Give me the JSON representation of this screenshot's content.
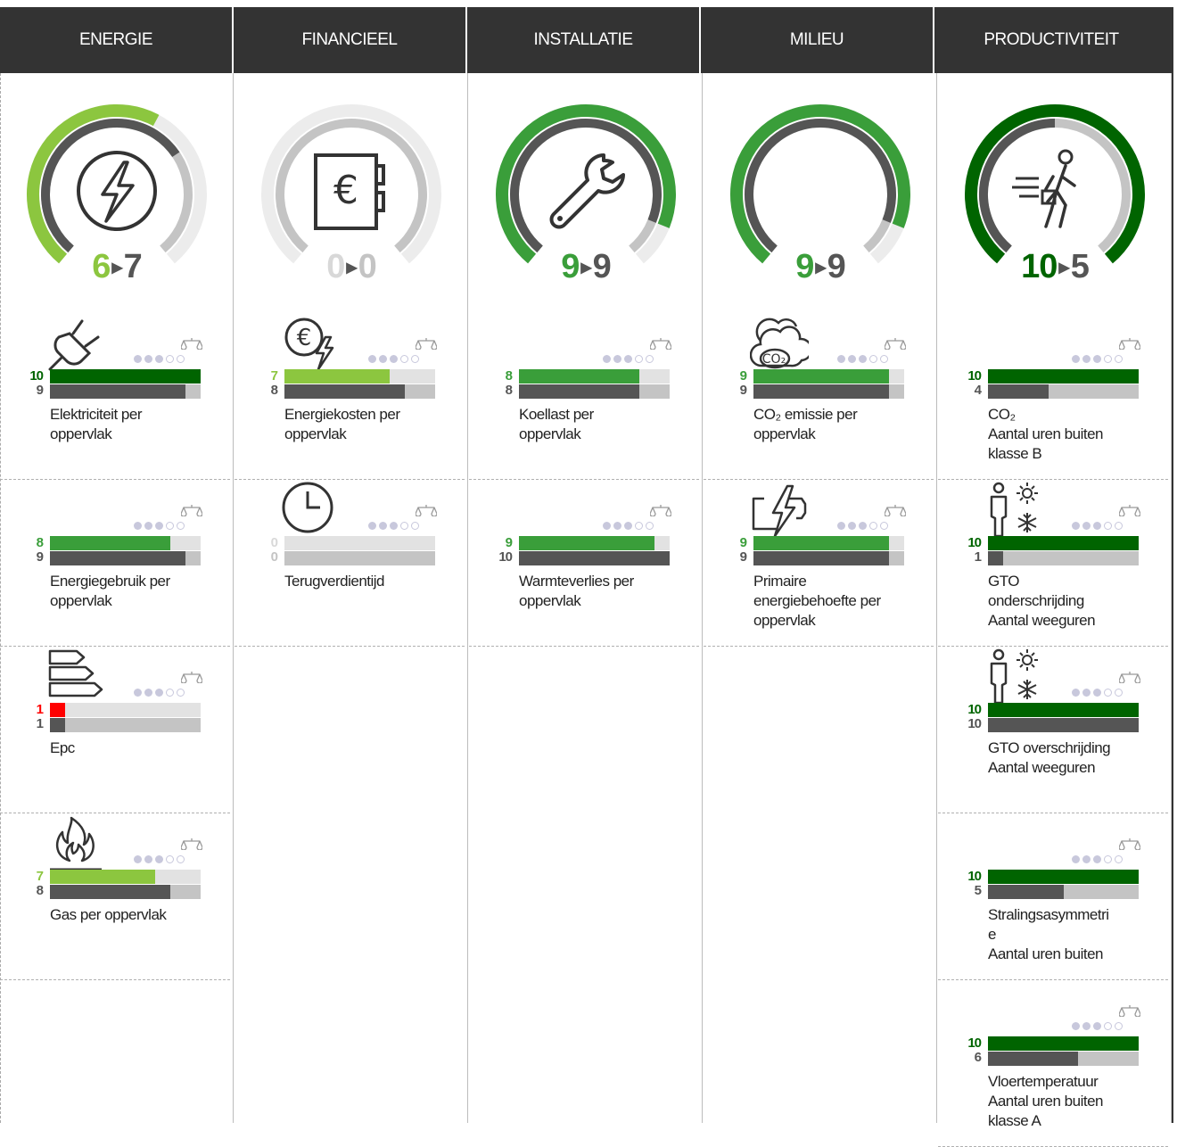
{
  "columns": [
    {
      "header": "ENERGIE",
      "gauge": {
        "before": "6",
        "after": "7",
        "before_color": "#8cc63f",
        "after_color": "#555555",
        "outer_level": 0.6,
        "inner_level": 0.7,
        "outer_color": "#8cc63f",
        "icon": "lightning-icon"
      },
      "kpis": [
        {
          "label": "Elektriciteit per\noppervlak",
          "icon": "plug-icon",
          "v1": "10",
          "v2": "9",
          "l1": 1.0,
          "l2": 0.9,
          "c1": "#006400",
          "dots": 3
        },
        {
          "label": "Energiegebruik per\noppervlak",
          "icon": "",
          "v1": "8",
          "v2": "9",
          "l1": 0.8,
          "l2": 0.9,
          "c1": "#3a9e3a",
          "dots": 3
        },
        {
          "label": "Epc",
          "icon": "energy-label-icon",
          "v1": "1",
          "v2": "1",
          "l1": 0.1,
          "l2": 0.1,
          "c1": "#ff0000",
          "dots": 3
        },
        {
          "label": "Gas per oppervlak",
          "icon": "flame-icon",
          "v1": "7",
          "v2": "8",
          "l1": 0.7,
          "l2": 0.8,
          "c1": "#8cc63f",
          "dots": 3
        }
      ]
    },
    {
      "header": "FINANCIEEL",
      "gauge": {
        "before": "0",
        "after": "0",
        "before_color": "#d8d8d8",
        "after_color": "#c4c4c4",
        "outer_level": 0.0,
        "inner_level": 0.0,
        "outer_color": "#8cc63f",
        "icon": "euro-register-icon"
      },
      "kpis": [
        {
          "label": "Energiekosten per\noppervlak",
          "icon": "euro-lightning-icon",
          "v1": "7",
          "v2": "8",
          "l1": 0.7,
          "l2": 0.8,
          "c1": "#8cc63f",
          "dots": 3
        },
        {
          "label": "Terugverdientijd",
          "icon": "clock-icon",
          "v1": "0",
          "v2": "0",
          "l1": 0.0,
          "l2": 0.0,
          "c1": "#8cc63f",
          "dots": 3
        }
      ]
    },
    {
      "header": "INSTALLATIE",
      "gauge": {
        "before": "9",
        "after": "9",
        "before_color": "#3a9e3a",
        "after_color": "#555555",
        "outer_level": 0.9,
        "inner_level": 0.9,
        "outer_color": "#3a9e3a",
        "icon": "wrench-icon"
      },
      "kpis": [
        {
          "label": "Koellast per\noppervlak",
          "icon": "",
          "v1": "8",
          "v2": "8",
          "l1": 0.8,
          "l2": 0.8,
          "c1": "#3a9e3a",
          "dots": 3
        },
        {
          "label": "Warmteverlies per\noppervlak",
          "icon": "",
          "v1": "9",
          "v2": "10",
          "l1": 0.9,
          "l2": 1.0,
          "c1": "#3a9e3a",
          "dots": 3
        }
      ]
    },
    {
      "header": "MILIEU",
      "gauge": {
        "before": "9",
        "after": "9",
        "before_color": "#3a9e3a",
        "after_color": "#555555",
        "outer_level": 0.9,
        "inner_level": 0.9,
        "outer_color": "#3a9e3a",
        "icon": ""
      },
      "kpis": [
        {
          "label": "CO₂ emissie per\noppervlak",
          "icon": "co2-cloud-icon",
          "v1": "9",
          "v2": "9",
          "l1": 0.9,
          "l2": 0.9,
          "c1": "#3a9e3a",
          "dots": 3
        },
        {
          "label": "Primaire\nenergiebehoefte per\noppervlak",
          "icon": "primary-energy-icon",
          "v1": "9",
          "v2": "9",
          "l1": 0.9,
          "l2": 0.9,
          "c1": "#3a9e3a",
          "dots": 3
        }
      ]
    },
    {
      "header": "PRODUCTIVITEIT",
      "gauge": {
        "before": "10",
        "after": "5",
        "before_color": "#006400",
        "after_color": "#555555",
        "outer_level": 1.0,
        "inner_level": 0.5,
        "outer_color": "#006400",
        "icon": "walking-person-icon"
      },
      "kpis": [
        {
          "label": "CO₂\nAantal uren buiten\nklasse B",
          "icon": "",
          "v1": "10",
          "v2": "4",
          "l1": 1.0,
          "l2": 0.4,
          "c1": "#006400",
          "dots": 3
        },
        {
          "label": "GTO\nonderschrijding\nAantal weeguren",
          "icon": "person-climate-icon",
          "v1": "10",
          "v2": "1",
          "l1": 1.0,
          "l2": 0.1,
          "c1": "#006400",
          "dots": 3
        },
        {
          "label": "GTO overschrijding\nAantal weeguren",
          "icon": "person-climate-icon",
          "v1": "10",
          "v2": "10",
          "l1": 1.0,
          "l2": 1.0,
          "c1": "#006400",
          "dots": 3
        },
        {
          "label": "Stralingsasymmetri\ne\nAantal uren buiten",
          "icon": "",
          "v1": "10",
          "v2": "5",
          "l1": 1.0,
          "l2": 0.5,
          "c1": "#006400",
          "dots": 3
        },
        {
          "label": "Vloertemperatuur\nAantal uren buiten\nklasse A",
          "icon": "",
          "v1": "10",
          "v2": "6",
          "l1": 1.0,
          "l2": 0.6,
          "c1": "#006400",
          "dots": 3
        }
      ]
    }
  ]
}
